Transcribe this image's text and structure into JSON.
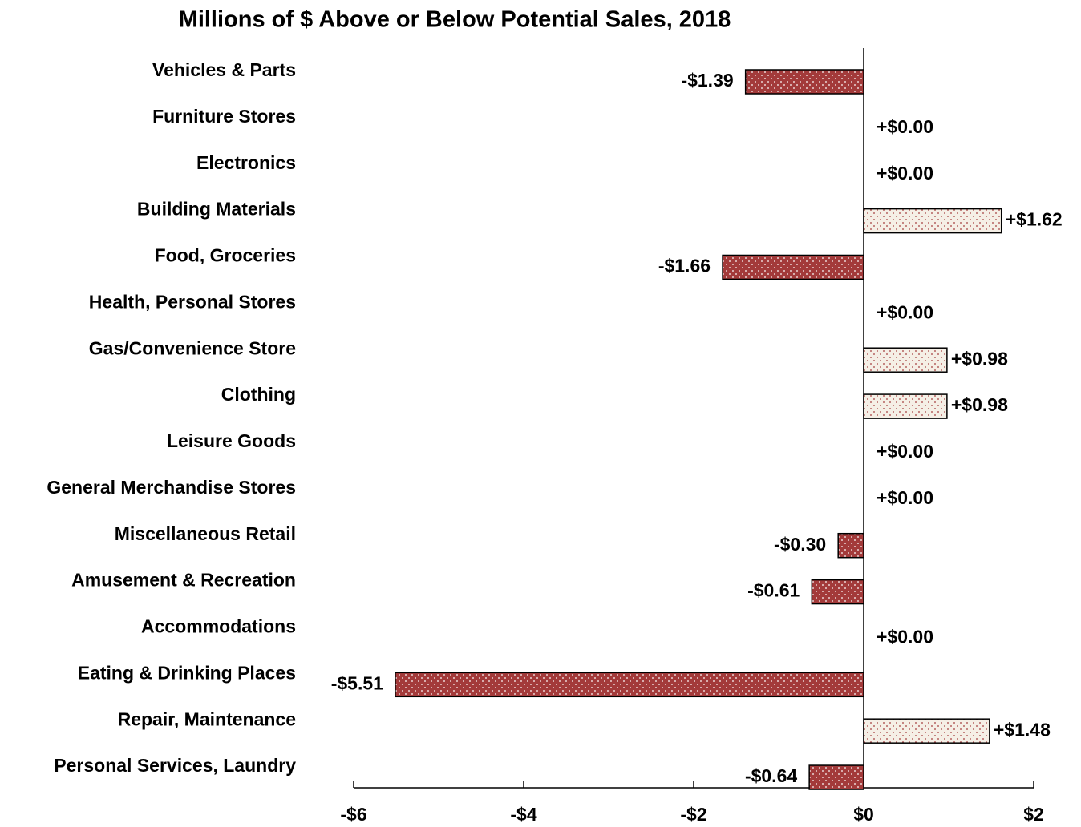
{
  "chart_data": {
    "type": "hbar",
    "title": "Millions of $ Above or Below Potential Sales, 2018",
    "categories": [
      "Vehicles & Parts",
      "Furniture Stores",
      "Electronics",
      "Building Materials",
      "Food, Groceries",
      "Health, Personal Stores",
      "Gas/Convenience Store",
      "Clothing",
      "Leisure Goods",
      "General Merchandise Stores",
      "Miscellaneous Retail",
      "Amusement & Recreation",
      "Accommodations",
      "Eating & Drinking Places",
      "Repair, Maintenance",
      "Personal Services, Laundry"
    ],
    "values": [
      -1.39,
      0,
      0,
      1.62,
      -1.66,
      0,
      0.98,
      0.98,
      0,
      0,
      -0.3,
      -0.61,
      0,
      -5.51,
      1.48,
      -0.64
    ],
    "value_labels": [
      "-$1.39",
      "+$0.00",
      "+$0.00",
      "+$1.62",
      "-$1.66",
      "+$0.00",
      "+$0.98",
      "+$0.98",
      "+$0.00",
      "+$0.00",
      "-$0.30",
      "-$0.61",
      "+$0.00",
      "-$5.51",
      "+$1.48",
      "-$0.64"
    ],
    "negative_color": "#a33a3a",
    "positive_color": "#f5efe6",
    "xlim": [
      -6,
      2
    ],
    "xticks": [
      {
        "value": -6,
        "label": "-$6"
      },
      {
        "value": -4,
        "label": "-$4"
      },
      {
        "value": -2,
        "label": "-$2"
      },
      {
        "value": 0,
        "label": "$0"
      },
      {
        "value": 2,
        "label": "$2"
      }
    ]
  }
}
